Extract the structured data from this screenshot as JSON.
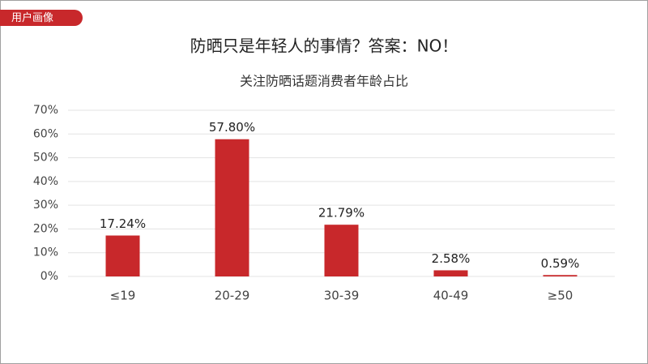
{
  "tag": "用户画像",
  "chart_data": {
    "type": "bar",
    "title": "防晒只是年轻人的事情？答案：NO！",
    "subtitle": "关注防晒话题消费者年龄占比",
    "categories": [
      "≤19",
      "20-29",
      "30-39",
      "40-49",
      "≥50"
    ],
    "values": [
      17.24,
      57.8,
      21.79,
      2.58,
      0.59
    ],
    "value_labels": [
      "17.24%",
      "57.80%",
      "21.79%",
      "2.58%",
      "0.59%"
    ],
    "color": "#c8282b",
    "ylim": [
      0,
      70
    ],
    "yticks": [
      {
        "value": 0,
        "label": "0%"
      },
      {
        "value": 10,
        "label": "10%"
      },
      {
        "value": 20,
        "label": "20%"
      },
      {
        "value": 30,
        "label": "30%"
      },
      {
        "value": 40,
        "label": "40%"
      },
      {
        "value": 50,
        "label": "50%"
      },
      {
        "value": 60,
        "label": "60%"
      },
      {
        "value": 70,
        "label": "70%"
      }
    ],
    "grid": true
  }
}
